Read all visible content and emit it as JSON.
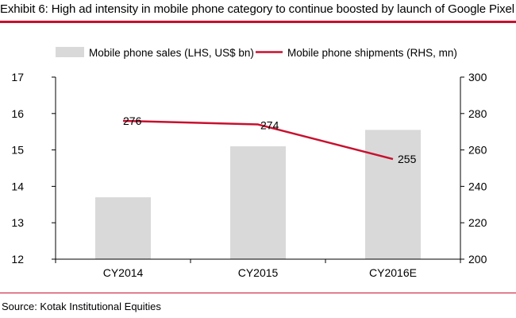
{
  "header": {
    "title": "Exhibit 6: High ad intensity in mobile phone category to continue boosted by launch of Google Pixel"
  },
  "footer": {
    "source": "Source: Kotak Institutional Equities"
  },
  "colors": {
    "accent_rule": "#c8102e",
    "bar": "#d9d9d9",
    "line": "#c8102e"
  },
  "chart_data": {
    "type": "bar",
    "categories": [
      "CY2014",
      "CY2015",
      "CY2016E"
    ],
    "series": [
      {
        "name": "Mobile phone sales (LHS, US$ bn)",
        "type": "bar",
        "axis": "left",
        "values": [
          13.7,
          15.1,
          15.55
        ]
      },
      {
        "name": "Mobile phone shipments (RHS, mn)",
        "type": "line",
        "axis": "right",
        "values": [
          276,
          274,
          255
        ],
        "labels": [
          "276",
          "274",
          "255"
        ]
      }
    ],
    "y_left": {
      "range": [
        12,
        17
      ],
      "ticks": [
        "12",
        "13",
        "14",
        "15",
        "16",
        "17"
      ]
    },
    "y_right": {
      "range": [
        200,
        300
      ],
      "ticks": [
        "200",
        "220",
        "240",
        "260",
        "280",
        "300"
      ]
    },
    "grid": false,
    "legend": "top"
  }
}
